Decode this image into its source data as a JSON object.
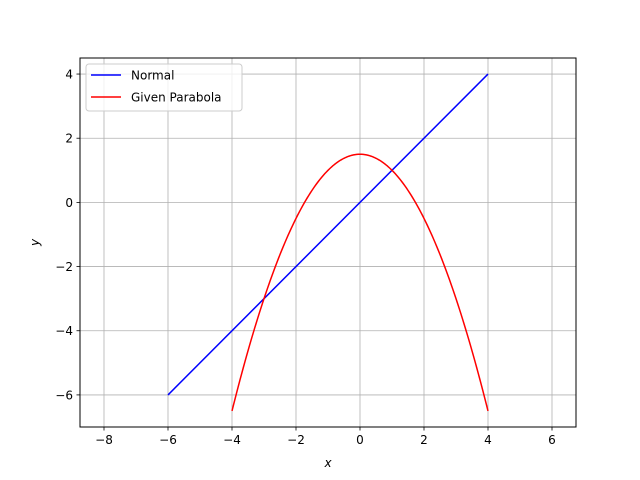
{
  "chart_data": {
    "type": "line",
    "title": "",
    "xlabel": "x",
    "ylabel": "y",
    "xlim": [
      -8.75,
      6.75
    ],
    "ylim": [
      -7.0,
      4.5
    ],
    "xticks": [
      -8,
      -6,
      -4,
      -2,
      0,
      2,
      4,
      6
    ],
    "yticks": [
      -6,
      -4,
      -2,
      0,
      2,
      4
    ],
    "xtick_labels": [
      "−8",
      "−6",
      "−4",
      "−2",
      "0",
      "2",
      "4",
      "6"
    ],
    "ytick_labels": [
      "−6",
      "−4",
      "−2",
      "0",
      "2",
      "4"
    ],
    "grid": true,
    "legend_position": "top-left",
    "series": [
      {
        "name": "Normal",
        "color": "#0000ff",
        "x": [
          -6,
          4
        ],
        "y": [
          -6,
          4
        ]
      },
      {
        "name": "Given Parabola",
        "color": "#ff0000",
        "equation": "y = 1.5 - x^2/2",
        "x": [
          -4,
          -3.5,
          -3,
          -2.5,
          -2,
          -1.5,
          -1,
          -0.5,
          0,
          0.5,
          1,
          1.5,
          2,
          2.5,
          3,
          3.5,
          4
        ],
        "y": [
          -6.5,
          -4.625,
          -3.0,
          -1.625,
          -0.5,
          0.375,
          1.0,
          1.375,
          1.5,
          1.375,
          1.0,
          0.375,
          -0.5,
          -1.625,
          -3.0,
          -4.625,
          -6.5
        ]
      }
    ]
  }
}
